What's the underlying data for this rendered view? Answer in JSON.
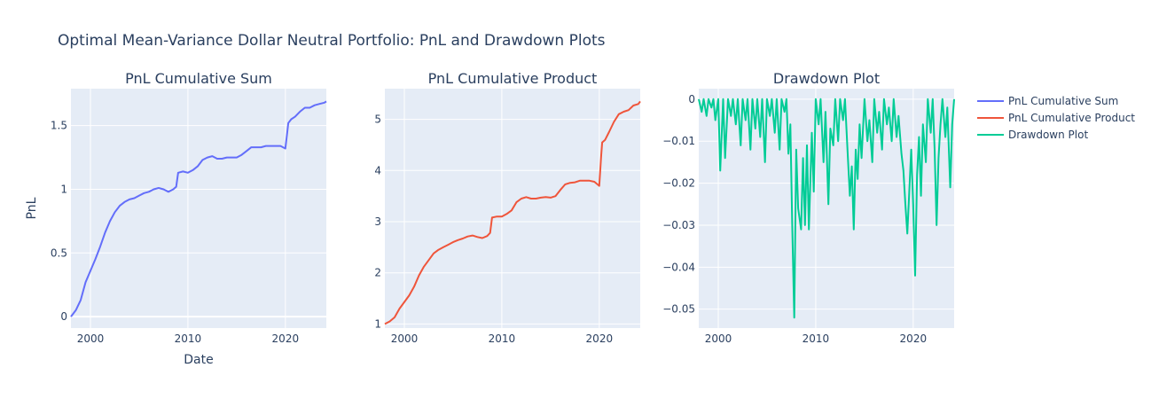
{
  "figure_title": "Optimal Mean-Variance Dollar Neutral Portfolio: PnL and Drawdown Plots",
  "colors": {
    "plot_bg": "#e5ecf6",
    "grid": "#ffffff",
    "text": "#2a3f5f"
  },
  "legend": [
    {
      "label": "PnL Cumulative Sum",
      "color": "#636efa"
    },
    {
      "label": "PnL Cumulative Product",
      "color": "#ef553b"
    },
    {
      "label": "Drawdown Plot",
      "color": "#00cc96"
    }
  ],
  "chart_data": [
    {
      "type": "line",
      "title": "PnL Cumulative Sum",
      "xlabel": "Date",
      "ylabel": "PnL",
      "x_ticks": [
        "2000",
        "2010",
        "2020"
      ],
      "y_ticks": [
        "0",
        "0.5",
        "1",
        "1.5"
      ],
      "xlim": [
        1998.0,
        2024.2
      ],
      "ylim": [
        -0.09,
        1.79
      ],
      "grid": true,
      "series": [
        {
          "name": "PnL Cumulative Sum",
          "color": "#636efa",
          "x": [
            1998.0,
            1998.5,
            1999.0,
            1999.5,
            2000.0,
            2000.5,
            2001.0,
            2001.5,
            2002.0,
            2002.5,
            2003.0,
            2003.5,
            2004.0,
            2004.5,
            2005.0,
            2005.5,
            2006.0,
            2006.5,
            2007.0,
            2007.5,
            2008.0,
            2008.5,
            2008.8,
            2009.0,
            2009.5,
            2010.0,
            2010.5,
            2011.0,
            2011.5,
            2012.0,
            2012.5,
            2013.0,
            2013.5,
            2014.0,
            2014.5,
            2015.0,
            2015.5,
            2016.0,
            2016.5,
            2017.0,
            2017.5,
            2018.0,
            2018.5,
            2019.0,
            2019.5,
            2020.0,
            2020.2,
            2020.3,
            2020.6,
            2021.0,
            2021.5,
            2022.0,
            2022.5,
            2023.0,
            2023.5,
            2024.0,
            2024.2
          ],
          "y": [
            0.0,
            0.05,
            0.13,
            0.27,
            0.36,
            0.45,
            0.55,
            0.66,
            0.75,
            0.82,
            0.87,
            0.9,
            0.92,
            0.93,
            0.95,
            0.97,
            0.98,
            1.0,
            1.01,
            1.0,
            0.98,
            1.0,
            1.02,
            1.13,
            1.14,
            1.13,
            1.15,
            1.18,
            1.23,
            1.25,
            1.26,
            1.24,
            1.24,
            1.25,
            1.25,
            1.25,
            1.27,
            1.3,
            1.33,
            1.33,
            1.33,
            1.34,
            1.34,
            1.34,
            1.34,
            1.32,
            1.45,
            1.52,
            1.55,
            1.57,
            1.61,
            1.64,
            1.64,
            1.66,
            1.67,
            1.68,
            1.69
          ]
        }
      ]
    },
    {
      "type": "line",
      "title": "PnL Cumulative Product",
      "xlabel": "",
      "ylabel": "",
      "x_ticks": [
        "2000",
        "2010",
        "2020"
      ],
      "y_ticks": [
        "1",
        "2",
        "3",
        "4",
        "5"
      ],
      "xlim": [
        1998.0,
        2024.2
      ],
      "ylim": [
        0.92,
        5.6
      ],
      "grid": true,
      "series": [
        {
          "name": "PnL Cumulative Product",
          "color": "#ef553b",
          "x": [
            1998.0,
            1998.5,
            1999.0,
            1999.5,
            2000.0,
            2000.5,
            2001.0,
            2001.5,
            2002.0,
            2002.5,
            2003.0,
            2003.5,
            2004.0,
            2004.5,
            2005.0,
            2005.5,
            2006.0,
            2006.5,
            2007.0,
            2007.5,
            2008.0,
            2008.5,
            2008.8,
            2009.0,
            2009.5,
            2010.0,
            2010.5,
            2011.0,
            2011.5,
            2012.0,
            2012.5,
            2013.0,
            2013.5,
            2014.0,
            2014.5,
            2015.0,
            2015.5,
            2016.0,
            2016.5,
            2017.0,
            2017.5,
            2018.0,
            2018.5,
            2019.0,
            2019.5,
            2020.0,
            2020.2,
            2020.3,
            2020.6,
            2021.0,
            2021.5,
            2022.0,
            2022.5,
            2023.0,
            2023.5,
            2024.0,
            2024.2
          ],
          "y": [
            1.0,
            1.05,
            1.13,
            1.3,
            1.43,
            1.56,
            1.73,
            1.95,
            2.12,
            2.25,
            2.38,
            2.45,
            2.5,
            2.55,
            2.6,
            2.64,
            2.67,
            2.71,
            2.73,
            2.7,
            2.68,
            2.72,
            2.78,
            3.08,
            3.1,
            3.1,
            3.15,
            3.22,
            3.38,
            3.45,
            3.48,
            3.45,
            3.45,
            3.47,
            3.48,
            3.47,
            3.5,
            3.62,
            3.73,
            3.76,
            3.77,
            3.8,
            3.8,
            3.8,
            3.78,
            3.7,
            4.3,
            4.55,
            4.6,
            4.75,
            4.95,
            5.1,
            5.15,
            5.18,
            5.27,
            5.3,
            5.35
          ]
        }
      ]
    },
    {
      "type": "line",
      "title": "Drawdown Plot",
      "xlabel": "",
      "ylabel": "",
      "x_ticks": [
        "2000",
        "2010",
        "2020"
      ],
      "y_ticks": [
        "0",
        "−0.01",
        "−0.02",
        "−0.03",
        "−0.04",
        "−0.05"
      ],
      "xlim": [
        1998.0,
        2024.2
      ],
      "ylim": [
        -0.0545,
        0.0025
      ],
      "grid": true,
      "series": [
        {
          "name": "Drawdown Plot",
          "color": "#00cc96",
          "x": [
            1998.0,
            1998.3,
            1998.5,
            1998.8,
            1999.0,
            1999.3,
            1999.5,
            1999.7,
            2000.0,
            2000.2,
            2000.5,
            2000.7,
            2001.0,
            2001.3,
            2001.5,
            2001.8,
            2002.0,
            2002.3,
            2002.5,
            2002.8,
            2003.0,
            2003.3,
            2003.5,
            2003.8,
            2004.0,
            2004.3,
            2004.5,
            2004.8,
            2005.0,
            2005.3,
            2005.5,
            2005.8,
            2006.0,
            2006.3,
            2006.5,
            2006.8,
            2007.0,
            2007.2,
            2007.4,
            2007.6,
            2007.8,
            2008.0,
            2008.2,
            2008.5,
            2008.7,
            2008.9,
            2009.1,
            2009.3,
            2009.6,
            2009.8,
            2010.0,
            2010.3,
            2010.5,
            2010.8,
            2011.0,
            2011.3,
            2011.5,
            2011.8,
            2012.0,
            2012.3,
            2012.5,
            2012.8,
            2013.0,
            2013.3,
            2013.5,
            2013.7,
            2013.9,
            2014.1,
            2014.3,
            2014.5,
            2014.7,
            2015.0,
            2015.3,
            2015.5,
            2015.8,
            2016.0,
            2016.3,
            2016.5,
            2016.8,
            2017.0,
            2017.3,
            2017.5,
            2017.8,
            2018.0,
            2018.3,
            2018.5,
            2018.8,
            2019.0,
            2019.2,
            2019.4,
            2019.6,
            2019.8,
            2020.0,
            2020.2,
            2020.4,
            2020.6,
            2020.8,
            2021.0,
            2021.3,
            2021.5,
            2021.8,
            2022.0,
            2022.2,
            2022.4,
            2022.6,
            2022.8,
            2023.0,
            2023.3,
            2023.5,
            2023.8,
            2024.0,
            2024.2
          ],
          "y": [
            0,
            -0.003,
            0,
            -0.004,
            0,
            -0.002,
            0,
            -0.005,
            0,
            -0.017,
            0,
            -0.014,
            0,
            -0.004,
            0,
            -0.006,
            0,
            -0.011,
            0,
            -0.005,
            0,
            -0.012,
            0,
            -0.007,
            0,
            -0.009,
            0,
            -0.015,
            0,
            -0.004,
            0,
            -0.008,
            0,
            -0.012,
            0,
            -0.003,
            0,
            -0.013,
            -0.006,
            -0.031,
            -0.052,
            -0.012,
            -0.026,
            -0.031,
            -0.014,
            -0.03,
            -0.011,
            -0.031,
            -0.008,
            -0.022,
            0,
            -0.006,
            0,
            -0.015,
            -0.003,
            -0.025,
            -0.007,
            -0.011,
            0,
            -0.01,
            0,
            -0.005,
            0,
            -0.014,
            -0.023,
            -0.016,
            -0.031,
            -0.012,
            -0.019,
            -0.006,
            -0.014,
            0,
            -0.01,
            -0.005,
            -0.015,
            0,
            -0.008,
            -0.003,
            -0.012,
            0,
            -0.006,
            -0.002,
            -0.01,
            0,
            -0.009,
            -0.004,
            -0.013,
            -0.017,
            -0.025,
            -0.032,
            -0.022,
            -0.012,
            -0.025,
            -0.042,
            -0.018,
            -0.009,
            -0.023,
            -0.006,
            -0.015,
            0,
            -0.008,
            0,
            -0.012,
            -0.03,
            -0.014,
            -0.006,
            0,
            -0.009,
            -0.002,
            -0.021,
            -0.006,
            0
          ]
        }
      ]
    }
  ]
}
